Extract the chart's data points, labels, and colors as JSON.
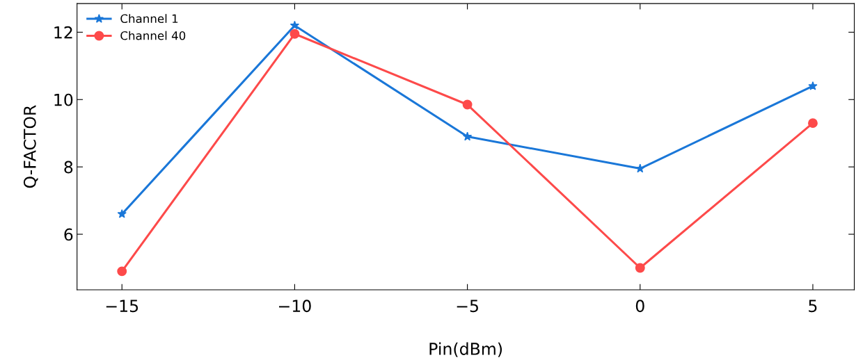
{
  "chart_data": {
    "type": "line",
    "xlabel": "Pin(dBm)",
    "ylabel": "Q-FACTOR",
    "x": [
      -15,
      -10,
      -5,
      0,
      5
    ],
    "series": [
      {
        "name": "Channel 1",
        "color": "#1a77d8",
        "marker": "star",
        "values": [
          6.6,
          12.2,
          8.9,
          7.95,
          10.4
        ]
      },
      {
        "name": "Channel 40",
        "color": "#fd4a4a",
        "marker": "circle",
        "values": [
          4.9,
          11.95,
          9.85,
          5.0,
          9.3
        ]
      }
    ],
    "xlim": [
      -16.3,
      6.2
    ],
    "ylim": [
      4.35,
      12.85
    ],
    "xticks": [
      -15,
      -10,
      -5,
      0,
      5
    ],
    "yticks": [
      6,
      8,
      10,
      12
    ],
    "grid": false,
    "legend": "top left",
    "line_style": "solid"
  }
}
